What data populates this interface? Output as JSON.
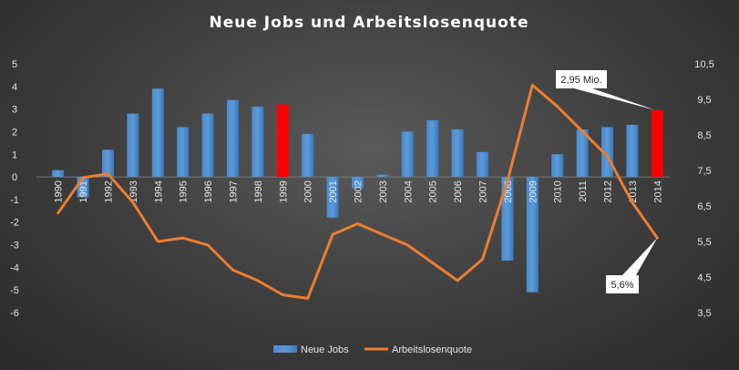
{
  "chart_data": {
    "type": "bar+line",
    "title": "Neue Jobs  und  Arbeitslosenquote",
    "categories": [
      "1990",
      "1991",
      "1992",
      "1993",
      "1994",
      "1995",
      "1996",
      "1997",
      "1998",
      "1999",
      "2000",
      "2001",
      "2002",
      "2003",
      "2004",
      "2005",
      "2006",
      "2007",
      "2008",
      "2009",
      "2010",
      "2011",
      "2012",
      "2013",
      "2014"
    ],
    "series": [
      {
        "name": "Neue Jobs",
        "type": "bar",
        "axis": "left",
        "color": "#5b9bd5",
        "values": [
          0.3,
          -0.9,
          1.2,
          2.8,
          3.9,
          2.2,
          2.8,
          3.4,
          3.1,
          3.2,
          1.9,
          -1.8,
          -0.5,
          0.1,
          2.0,
          2.5,
          2.1,
          1.1,
          -3.7,
          -5.1,
          1.0,
          2.1,
          2.2,
          2.3,
          2.95
        ],
        "highlight": {
          "indices": [
            9,
            24
          ],
          "color": "#ff0000"
        }
      },
      {
        "name": "Arbeitslosenquote",
        "type": "line",
        "axis": "right",
        "color": "#ed7d31",
        "values": [
          6.3,
          7.3,
          7.4,
          6.6,
          5.5,
          5.6,
          5.4,
          4.7,
          4.4,
          4.0,
          3.9,
          5.7,
          6.0,
          5.7,
          5.4,
          4.9,
          4.4,
          5.0,
          7.2,
          9.9,
          9.3,
          8.6,
          7.9,
          6.6,
          5.6
        ]
      }
    ],
    "y_left": {
      "min": -6,
      "max": 5,
      "ticks": [
        "5",
        "4",
        "3",
        "2",
        "1",
        "0",
        "-1",
        "-2",
        "-3",
        "-4",
        "-5",
        "-6"
      ]
    },
    "y_right": {
      "min": 3.5,
      "max": 10.5,
      "ticks": [
        "10,5",
        "9,5",
        "8,5",
        "7,5",
        "6,5",
        "5,5",
        "4,5",
        "3,5"
      ]
    },
    "annotations": [
      {
        "text": "2,95 Mio.",
        "target_series": "Neue Jobs",
        "target_index": 24
      },
      {
        "text": "5,6%",
        "target_series": "Arbeitslosenquote",
        "target_index": 24
      }
    ],
    "legend": {
      "position": "bottom",
      "items": [
        "Neue Jobs",
        "Arbeitslosenquote"
      ]
    },
    "grid": false
  }
}
